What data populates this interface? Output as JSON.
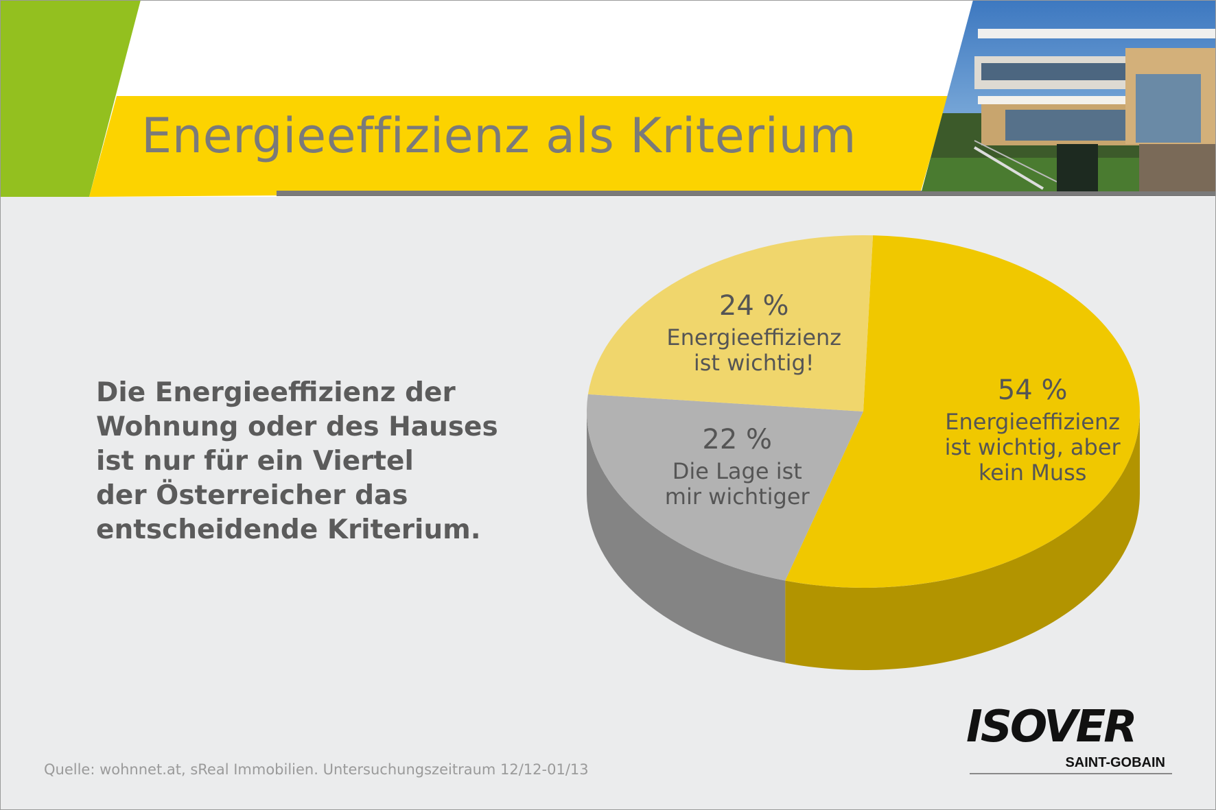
{
  "title": "Energieeffizienz als Kriterium",
  "lead_lines": [
    "Die Energieeffizienz der",
    "Wohnung oder des Hauses",
    "ist nur für ein Viertel",
    "der Österreicher das",
    "entscheidende Kriterium."
  ],
  "source": "Quelle: wohnnet.at, sReal Immobilien. Untersuchungszeitraum 12/12-01/13",
  "logo": {
    "word": "ISOVER",
    "sub": "SAINT-GOBAIN"
  },
  "colors": {
    "accent_green": "#93c01f",
    "accent_yellow": "#fcd300",
    "title_gray": "#7a7a7a",
    "background": "#ebeced"
  },
  "chart_data": {
    "type": "pie",
    "style": "3d",
    "title": "",
    "slices": [
      {
        "value": 54,
        "label": "54 %",
        "text": [
          "Energieeffizienz",
          "ist wichtig, aber",
          "kein Muss"
        ],
        "color": "#f0c800"
      },
      {
        "value": 22,
        "label": "22 %",
        "text": [
          "Die Lage ist",
          "mir wichtiger"
        ],
        "color": "#b2b2b2"
      },
      {
        "value": 24,
        "label": "24 %",
        "text": [
          "Energieeffizienz",
          "ist wichtig!"
        ],
        "color": "#f0d66c"
      }
    ]
  }
}
